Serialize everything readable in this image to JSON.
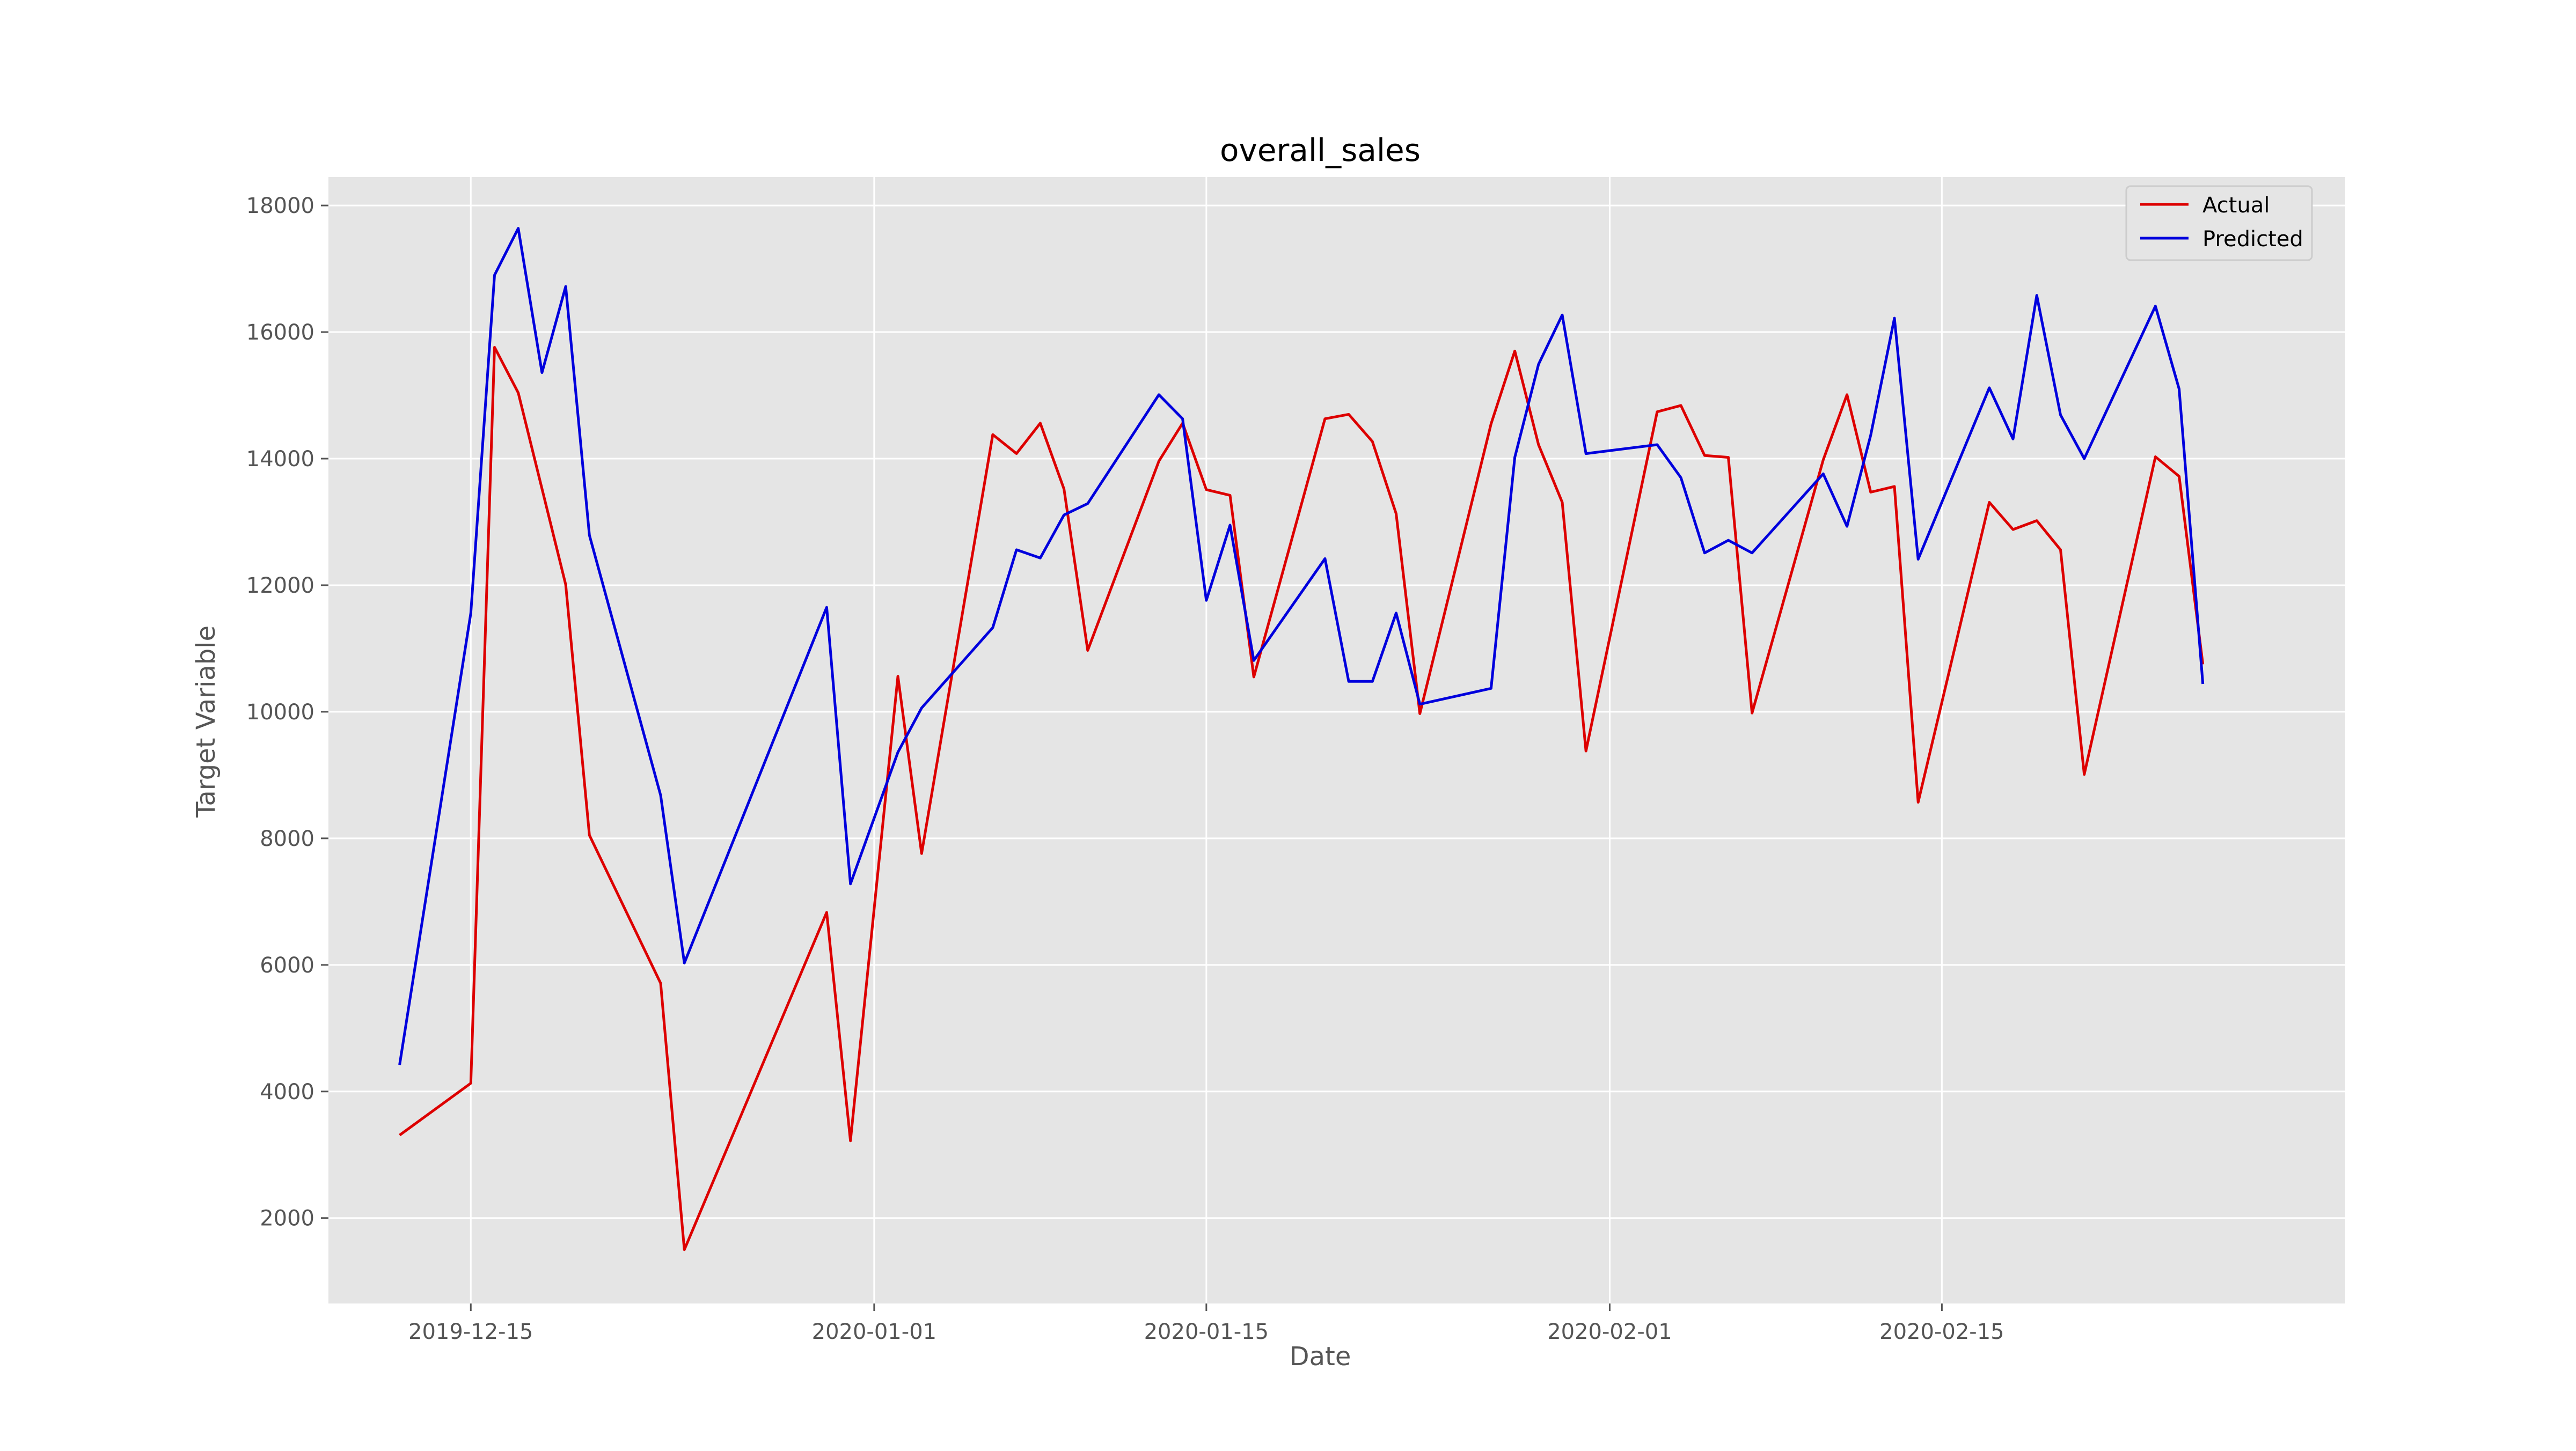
{
  "chart_data": {
    "type": "line",
    "title": "overall_sales",
    "xlabel": "Date",
    "ylabel": "Target Variable",
    "xlim": [
      "2019-12-09",
      "2020-03-03"
    ],
    "ylim": [
      650,
      18450
    ],
    "x_ticks": [
      "2019-12-15",
      "2020-01-01",
      "2020-01-15",
      "2020-02-01",
      "2020-02-15"
    ],
    "y_ticks": [
      2000,
      4000,
      6000,
      8000,
      10000,
      12000,
      14000,
      16000,
      18000
    ],
    "grid": true,
    "legend_position": "upper right",
    "background_color": "#e5e5e5",
    "grid_color": "#ffffff",
    "series": [
      {
        "name": "Actual",
        "color": "#dd0000",
        "points": [
          [
            "2019-12-12",
            3310
          ],
          [
            "2019-12-15",
            4130
          ],
          [
            "2019-12-16",
            15760
          ],
          [
            "2019-12-17",
            15040
          ],
          [
            "2019-12-19",
            12010
          ],
          [
            "2019-12-20",
            8050
          ],
          [
            "2019-12-23",
            5710
          ],
          [
            "2019-12-24",
            1500
          ],
          [
            "2019-12-30",
            6830
          ],
          [
            "2019-12-31",
            3220
          ],
          [
            "2020-01-02",
            10560
          ],
          [
            "2020-01-03",
            7760
          ],
          [
            "2020-01-06",
            14380
          ],
          [
            "2020-01-07",
            14080
          ],
          [
            "2020-01-08",
            14560
          ],
          [
            "2020-01-09",
            13520
          ],
          [
            "2020-01-10",
            10970
          ],
          [
            "2020-01-13",
            13960
          ],
          [
            "2020-01-14",
            14560
          ],
          [
            "2020-01-15",
            13510
          ],
          [
            "2020-01-16",
            13420
          ],
          [
            "2020-01-17",
            10550
          ],
          [
            "2020-01-20",
            14630
          ],
          [
            "2020-01-21",
            14700
          ],
          [
            "2020-01-22",
            14270
          ],
          [
            "2020-01-23",
            13130
          ],
          [
            "2020-01-24",
            9970
          ],
          [
            "2020-01-27",
            14550
          ],
          [
            "2020-01-28",
            15700
          ],
          [
            "2020-01-29",
            14220
          ],
          [
            "2020-01-30",
            13310
          ],
          [
            "2020-01-31",
            9380
          ],
          [
            "2020-02-03",
            14740
          ],
          [
            "2020-02-04",
            14840
          ],
          [
            "2020-02-05",
            14050
          ],
          [
            "2020-02-06",
            14020
          ],
          [
            "2020-02-07",
            9980
          ],
          [
            "2020-02-10",
            13980
          ],
          [
            "2020-02-11",
            15010
          ],
          [
            "2020-02-12",
            13470
          ],
          [
            "2020-02-13",
            13560
          ],
          [
            "2020-02-14",
            8570
          ],
          [
            "2020-02-17",
            13310
          ],
          [
            "2020-02-18",
            12880
          ],
          [
            "2020-02-19",
            13020
          ],
          [
            "2020-02-20",
            12560
          ],
          [
            "2020-02-21",
            9010
          ],
          [
            "2020-02-24",
            14030
          ],
          [
            "2020-02-25",
            13720
          ],
          [
            "2020-02-26",
            10750
          ]
        ]
      },
      {
        "name": "Predicted",
        "color": "#0000dd",
        "points": [
          [
            "2019-12-12",
            4420
          ],
          [
            "2019-12-15",
            11560
          ],
          [
            "2019-12-16",
            16900
          ],
          [
            "2019-12-17",
            17640
          ],
          [
            "2019-12-18",
            15360
          ],
          [
            "2019-12-19",
            16720
          ],
          [
            "2019-12-20",
            12790
          ],
          [
            "2019-12-23",
            8680
          ],
          [
            "2019-12-24",
            6030
          ],
          [
            "2019-12-30",
            11650
          ],
          [
            "2019-12-31",
            7280
          ],
          [
            "2020-01-02",
            9360
          ],
          [
            "2020-01-03",
            10060
          ],
          [
            "2020-01-06",
            11330
          ],
          [
            "2020-01-07",
            12560
          ],
          [
            "2020-01-08",
            12430
          ],
          [
            "2020-01-09",
            13110
          ],
          [
            "2020-01-10",
            13290
          ],
          [
            "2020-01-13",
            15010
          ],
          [
            "2020-01-14",
            14630
          ],
          [
            "2020-01-15",
            11760
          ],
          [
            "2020-01-16",
            12950
          ],
          [
            "2020-01-17",
            10810
          ],
          [
            "2020-01-20",
            12420
          ],
          [
            "2020-01-21",
            10480
          ],
          [
            "2020-01-22",
            10480
          ],
          [
            "2020-01-23",
            11560
          ],
          [
            "2020-01-24",
            10120
          ],
          [
            "2020-01-27",
            10370
          ],
          [
            "2020-01-28",
            14020
          ],
          [
            "2020-01-29",
            15490
          ],
          [
            "2020-01-30",
            16270
          ],
          [
            "2020-01-31",
            14080
          ],
          [
            "2020-02-03",
            14220
          ],
          [
            "2020-02-04",
            13700
          ],
          [
            "2020-02-05",
            12510
          ],
          [
            "2020-02-06",
            12710
          ],
          [
            "2020-02-07",
            12510
          ],
          [
            "2020-02-10",
            13760
          ],
          [
            "2020-02-11",
            12930
          ],
          [
            "2020-02-12",
            14370
          ],
          [
            "2020-02-13",
            16220
          ],
          [
            "2020-02-14",
            12410
          ],
          [
            "2020-02-17",
            15120
          ],
          [
            "2020-02-18",
            14310
          ],
          [
            "2020-02-19",
            16580
          ],
          [
            "2020-02-20",
            14690
          ],
          [
            "2020-02-21",
            14000
          ],
          [
            "2020-02-24",
            16410
          ],
          [
            "2020-02-25",
            15100
          ],
          [
            "2020-02-26",
            10440
          ]
        ]
      }
    ]
  }
}
